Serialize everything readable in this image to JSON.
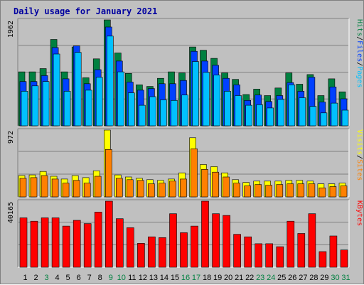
{
  "chart_data": {
    "type": "bar",
    "title": "Daily usage for January 2021",
    "categories": [
      "1",
      "2",
      "3",
      "4",
      "5",
      "6",
      "7",
      "8",
      "9",
      "10",
      "11",
      "12",
      "13",
      "14",
      "15",
      "16",
      "17",
      "18",
      "19",
      "20",
      "21",
      "22",
      "23",
      "24",
      "25",
      "26",
      "27",
      "28",
      "29",
      "30",
      "31"
    ],
    "weekend_days": [
      "3",
      "9",
      "10",
      "16",
      "17",
      "23",
      "24",
      "30",
      "31"
    ],
    "colors": {
      "hits": "#008040",
      "files": "#0040ff",
      "pages": "#00c0ff",
      "visits": "#ffff00",
      "sites": "#ff8000",
      "kbytes": "#ff0000",
      "weekday_label": "#000000",
      "weekend_label": "#008040",
      "title": "#0000a0"
    },
    "panels": [
      {
        "id": "hits-files-pages",
        "ymax_label": "1962",
        "ylim": [
          0,
          1962
        ],
        "grid": true,
        "legend": [
          {
            "text": "Pages",
            "color": "#00c0ff"
          },
          {
            "text": "/",
            "color": "#000000"
          },
          {
            "text": "Files",
            "color": "#0040ff"
          },
          {
            "text": "/",
            "color": "#000000"
          },
          {
            "text": "Hits",
            "color": "#008040"
          }
        ],
        "series": [
          {
            "name": "Hits",
            "color": "#008040",
            "values": [
              1000,
              1000,
              1060,
              1600,
              1000,
              1460,
              890,
              1240,
              1962,
              1350,
              970,
              760,
              730,
              880,
              1000,
              980,
              1460,
              1400,
              1250,
              980,
              860,
              580,
              680,
              560,
              700,
              980,
              770,
              950,
              560,
              870,
              630
            ]
          },
          {
            "name": "Files",
            "color": "#0040ff",
            "values": [
              820,
              820,
              930,
              1450,
              870,
              1480,
              780,
              1040,
              1830,
              1200,
              810,
              660,
              690,
              780,
              780,
              840,
              1380,
              1200,
              1120,
              880,
              760,
              470,
              570,
              450,
              560,
              800,
              640,
              900,
              440,
              720,
              500
            ]
          },
          {
            "name": "Pages",
            "color": "#00c0ff",
            "values": [
              640,
              740,
              820,
              1330,
              640,
              1360,
              660,
              900,
              1662,
              1000,
              610,
              380,
              540,
              480,
              470,
              570,
              1190,
              990,
              940,
              640,
              560,
              380,
              390,
              330,
              490,
              760,
              520,
              360,
              240,
              420,
              290
            ]
          }
        ]
      },
      {
        "id": "visits-sites",
        "ymax_label": "972",
        "ylim": [
          0,
          972
        ],
        "grid": true,
        "legend": [
          {
            "text": "Sites",
            "color": "#ff8000"
          },
          {
            "text": "/",
            "color": "#000000"
          },
          {
            "text": "Visits",
            "color": "#ffff00"
          }
        ],
        "series": [
          {
            "name": "Visits",
            "color": "#ffff00",
            "values": [
              310,
              320,
              370,
              300,
              260,
              310,
              280,
              380,
              972,
              320,
              290,
              270,
              250,
              240,
              260,
              350,
              860,
              470,
              440,
              350,
              250,
              210,
              230,
              230,
              230,
              240,
              240,
              230,
              190,
              190,
              200
            ]
          },
          {
            "name": "Sites",
            "color": "#ff8000",
            "values": [
              270,
              280,
              310,
              260,
              200,
              240,
              200,
              300,
              690,
              270,
              250,
              240,
              190,
              200,
              230,
              260,
              700,
              400,
              360,
              290,
              200,
              160,
              180,
              170,
              180,
              190,
              190,
              190,
              130,
              150,
              160
            ]
          }
        ]
      },
      {
        "id": "kbytes",
        "ymax_label": "40165",
        "ylim": [
          0,
          40165
        ],
        "grid": true,
        "legend": [
          {
            "text": "KBytes",
            "color": "#ff0000"
          }
        ],
        "series": [
          {
            "name": "KBytes",
            "color": "#ff0000",
            "values": [
              30000,
              28000,
              30000,
              30000,
              25000,
              28500,
              26500,
              33500,
              40165,
              29500,
              24000,
              14500,
              18500,
              18000,
              32500,
              21000,
              25000,
              40165,
              32500,
              31500,
              20000,
              18500,
              14300,
              14300,
              12500,
              28000,
              20500,
              32500,
              9500,
              19000,
              10500
            ]
          }
        ]
      }
    ]
  }
}
